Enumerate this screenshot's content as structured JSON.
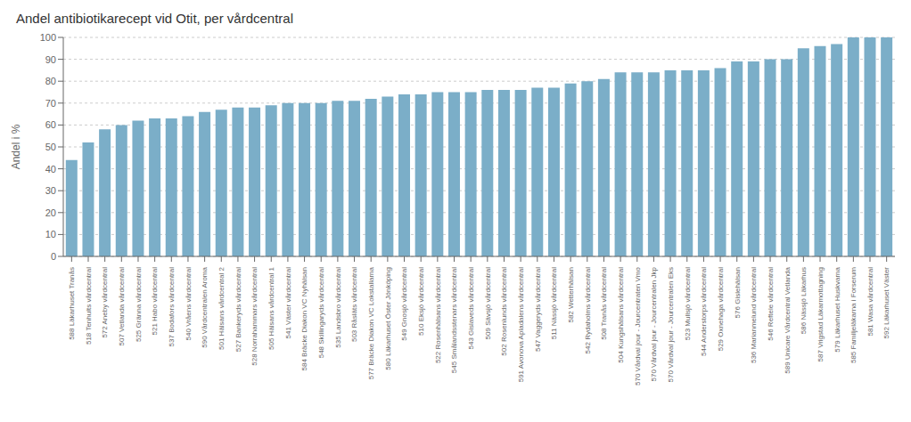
{
  "chart_data": {
    "type": "bar",
    "title": "Andel antibiotikarecept vid Otit, per vårdcentral",
    "ylabel": "Andel i %",
    "categories": [
      "588 Läkarhuset Tranås",
      "518 Tenhults vårdcentral",
      "572 Aneby vårdcentral",
      "507 Vetlanda vårdcentral",
      "525 Gränna vårdcentral",
      "521 Habo vårdcentral",
      "537 Bodafors vårdcentral",
      "540 Vråens vårdcentral",
      "590 Vårdcentralen Aroma",
      "501 Hälsans vårdcentral 2",
      "527 Bankeryds vårdcentral",
      "528 Norrahammars vårdcentral",
      "505 Hälsans vårdcentral 1",
      "541 Väster vårdcentral",
      "584 Bräcke Diakon VC Nyhälsan",
      "548 Skillingaryds vårdcentral",
      "535 Landsbro vårdcentral",
      "503 Råsläts vårdcentral",
      "577 Bräcke Diakon VC Lokstallarna",
      "580 Läkarhuset Öster Jönköping",
      "549 Gnosjö vårdcentral",
      "510 Eksjö vårdcentral",
      "522 Rosenhälsans vårdcentral",
      "545 Smålandsstenars vårdcentral",
      "543 Gislaveds vårdcentral",
      "509 Sävsjö vårdcentral",
      "502 Rosenlunds vårdcentral",
      "591 Avonova Apladalens vårdcentral",
      "547 Vaggeryds vårdcentral",
      "511 Nässjö vårdcentral",
      "582 Wetterhälsan",
      "542 Rydaholms vårdcentral",
      "508 Tranås vårdcentral",
      "504 Kungshälsans vårdcentral",
      "570 Vårdval jour - Jourcentraten Vmo",
      "570 Vårdval jour - Jourcentralen Jkp",
      "570 Vårdval jour - Jourcentralen Eks",
      "523 Mullsjö vårdcentral",
      "544 Anderstorps vårdcentral",
      "529 Oxnehaga vårdcentral",
      "576 Gislehälsan",
      "536 Marianmelund vårdcentral",
      "546 Reftele vårdcentral",
      "589 Unicare Vårdcentral Vetlanda",
      "586 Nässjö Läkarhus",
      "587 Vrigstad Läkarmottagning",
      "579 Läkarhuset Huskvarna",
      "585 Familjeläkarna i Forserum",
      "581 Wasa vårdcentral",
      "592 Läkarhuset Väster"
    ],
    "values": [
      44,
      52,
      58,
      60,
      62,
      63,
      63,
      64,
      66,
      67,
      68,
      68,
      69,
      70,
      70,
      70,
      71,
      71,
      72,
      73,
      74,
      74,
      75,
      75,
      75,
      76,
      76,
      76,
      77,
      77,
      79,
      80,
      81,
      84,
      84,
      84,
      85,
      85,
      85,
      86,
      89,
      89,
      90,
      90,
      95,
      96,
      97,
      100,
      100,
      100
    ],
    "color": "#7BAEC8",
    "ylim": [
      0,
      100
    ],
    "yticks": [
      0,
      10,
      20,
      30,
      40,
      50,
      60,
      70,
      80,
      90,
      100
    ],
    "grid": true
  }
}
